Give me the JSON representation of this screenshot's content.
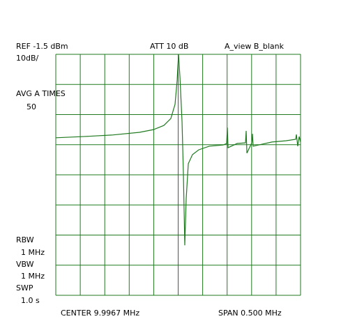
{
  "chart_data": {
    "type": "line",
    "annotations": [
      "REF -1.5 dBm",
      "ATT 10 dB",
      "A_view B_blank",
      "10dB/",
      "AVG A TIMES",
      "50",
      "RBW",
      "1 MHz",
      "VBW",
      "1 MHz",
      "SWP",
      "1.0 s",
      "CENTER 9.9967 MHz",
      "SPAN 0.500 MHz"
    ],
    "x": [
      9.7467,
      9.8037,
      9.8607,
      9.9176,
      9.9461,
      9.9675,
      9.9817,
      9.9903,
      9.9946,
      9.9974,
      10.0003,
      10.0046,
      10.0074,
      10.0102,
      10.0131,
      10.0174,
      10.0259,
      10.0387,
      10.0601,
      10.0886,
      10.0957,
      10.0971,
      10.0986,
      10.1171,
      10.1342,
      10.1356,
      10.1371,
      10.147,
      10.1484,
      10.1499,
      10.1883,
      10.2168,
      10.2368,
      10.2382,
      10.241,
      10.2439,
      10.2467
    ],
    "series": [
      {
        "color": "#1f7a1f",
        "values": [
          -29.2,
          -28.8,
          -28.3,
          -27.4,
          -26.5,
          -25.1,
          -22.8,
          -18.1,
          -10.1,
          -1.5,
          -8.9,
          -23.9,
          -41.3,
          -64.9,
          -49.4,
          -37.8,
          -34.8,
          -33.2,
          -32.0,
          -31.6,
          -31.1,
          -25.8,
          -32.5,
          -31.1,
          -30.9,
          -26.9,
          -34.3,
          -30.9,
          -27.9,
          -32.0,
          -30.6,
          -30.2,
          -29.7,
          -28.1,
          -32.0,
          -28.8,
          -30.6
        ]
      }
    ],
    "xlim": [
      9.7467,
      10.2467
    ],
    "xticks": [
      9.7467,
      9.7967,
      9.8467,
      9.8967,
      9.9467,
      9.9967,
      10.0467,
      10.0967,
      10.1467,
      10.1967,
      10.2467
    ],
    "ylim": [
      -81.5,
      -1.5
    ],
    "yticks": [
      -81.5,
      -71.5,
      -61.5,
      -51.5,
      -41.5,
      -31.5,
      -21.5,
      -11.5,
      -1.5
    ],
    "grid": true
  }
}
